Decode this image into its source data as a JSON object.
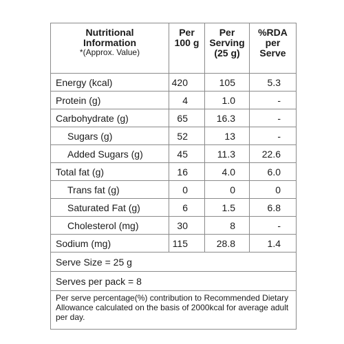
{
  "header": {
    "title": [
      "Nutritional",
      "Information"
    ],
    "note": "*(Approx. Value)",
    "columns": [
      [
        "Per",
        "100 g"
      ],
      [
        "Per",
        "Serving",
        "(25 g)"
      ],
      [
        "%RDA",
        "per",
        "Serve"
      ]
    ]
  },
  "rows": [
    {
      "label": "Energy (kcal)",
      "sub": false,
      "values": [
        "420",
        "105",
        "5.3"
      ]
    },
    {
      "label": "Protein (g)",
      "sub": false,
      "values": [
        "4",
        "1.0",
        "-"
      ]
    },
    {
      "label": "Carbohydrate (g)",
      "sub": false,
      "values": [
        "65",
        "16.3",
        "-"
      ]
    },
    {
      "label": "Sugars (g)",
      "sub": true,
      "values": [
        "52",
        "13",
        "-"
      ]
    },
    {
      "label": "Added Sugars (g)",
      "sub": true,
      "values": [
        "45",
        "11.3",
        "22.6"
      ]
    },
    {
      "label": "Total fat (g)",
      "sub": false,
      "values": [
        "16",
        "4.0",
        "6.0"
      ]
    },
    {
      "label": "Trans fat (g)",
      "sub": true,
      "values": [
        "0",
        "0",
        "0"
      ]
    },
    {
      "label": "Saturated Fat (g)",
      "sub": true,
      "values": [
        "6",
        "1.5",
        "6.8"
      ]
    },
    {
      "label": "Cholesterol (mg)",
      "sub": true,
      "values": [
        "30",
        "8",
        "-"
      ]
    },
    {
      "label": "Sodium (mg)",
      "sub": false,
      "values": [
        "115",
        "28.8",
        "1.4"
      ]
    }
  ],
  "footer": {
    "serve_size": "Serve Size = 25 g",
    "serves_per_pack": "Serves per pack = 8",
    "footnote": "Per serve percentage(%) contribution to Recommended Dietary Allowance calculated on the basis of 2000kcal for average adult per day."
  }
}
